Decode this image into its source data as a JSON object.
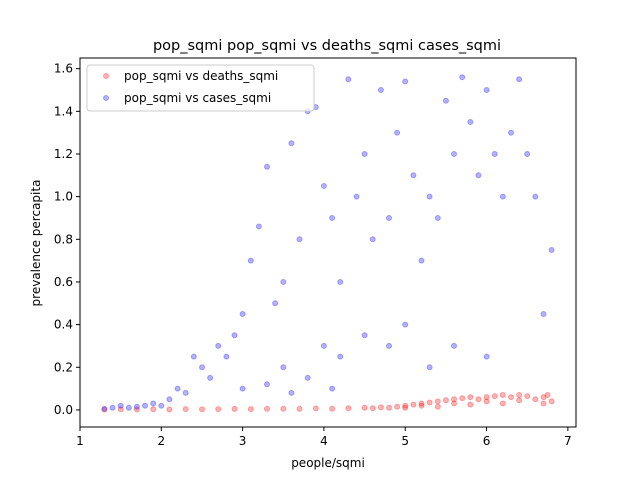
{
  "chart_data": {
    "type": "scatter",
    "title": "pop_sqmi pop_sqmi vs deaths_sqmi cases_sqmi",
    "xlabel": "people/sqmi",
    "ylabel": "prevalence percapita",
    "xlim": [
      1.0,
      7.1
    ],
    "ylim": [
      -0.08,
      1.65
    ],
    "xticks": [
      "1",
      "2",
      "3",
      "4",
      "5",
      "6",
      "7"
    ],
    "yticks": [
      "0.0",
      "0.2",
      "0.4",
      "0.6",
      "0.8",
      "1.0",
      "1.2",
      "1.4",
      "1.6"
    ],
    "legend_position": "top-left",
    "series": [
      {
        "name": "pop_sqmi vs deaths_sqmi",
        "color": "#ff0000",
        "points": [
          [
            1.3,
            0.002
          ],
          [
            1.5,
            0.003
          ],
          [
            1.7,
            0.002
          ],
          [
            1.9,
            0.003
          ],
          [
            2.1,
            0.002
          ],
          [
            2.3,
            0.004
          ],
          [
            2.5,
            0.003
          ],
          [
            2.7,
            0.004
          ],
          [
            2.9,
            0.005
          ],
          [
            3.1,
            0.004
          ],
          [
            3.3,
            0.005
          ],
          [
            3.5,
            0.006
          ],
          [
            3.7,
            0.005
          ],
          [
            3.9,
            0.007
          ],
          [
            4.1,
            0.006
          ],
          [
            4.3,
            0.008
          ],
          [
            4.5,
            0.01
          ],
          [
            4.7,
            0.012
          ],
          [
            4.9,
            0.015
          ],
          [
            5.0,
            0.02
          ],
          [
            5.1,
            0.025
          ],
          [
            5.2,
            0.03
          ],
          [
            5.3,
            0.035
          ],
          [
            5.4,
            0.04
          ],
          [
            5.5,
            0.045
          ],
          [
            5.6,
            0.05
          ],
          [
            5.7,
            0.055
          ],
          [
            5.8,
            0.06
          ],
          [
            5.9,
            0.05
          ],
          [
            6.0,
            0.06
          ],
          [
            6.1,
            0.065
          ],
          [
            6.2,
            0.07
          ],
          [
            6.3,
            0.06
          ],
          [
            6.4,
            0.07
          ],
          [
            6.5,
            0.065
          ],
          [
            6.6,
            0.05
          ],
          [
            6.7,
            0.06
          ],
          [
            6.75,
            0.07
          ],
          [
            6.8,
            0.04
          ],
          [
            6.7,
            0.03
          ],
          [
            5.0,
            0.01
          ],
          [
            5.2,
            0.02
          ],
          [
            5.4,
            0.015
          ],
          [
            5.6,
            0.03
          ],
          [
            5.8,
            0.025
          ],
          [
            6.0,
            0.04
          ],
          [
            6.2,
            0.03
          ],
          [
            6.4,
            0.045
          ],
          [
            4.8,
            0.01
          ],
          [
            4.6,
            0.008
          ]
        ]
      },
      {
        "name": "pop_sqmi vs cases_sqmi",
        "color": "#0000ff",
        "points": [
          [
            1.3,
            0.005
          ],
          [
            1.4,
            0.01
          ],
          [
            1.5,
            0.02
          ],
          [
            1.6,
            0.01
          ],
          [
            1.7,
            0.015
          ],
          [
            1.8,
            0.02
          ],
          [
            1.9,
            0.03
          ],
          [
            2.0,
            0.02
          ],
          [
            2.1,
            0.05
          ],
          [
            2.2,
            0.1
          ],
          [
            2.3,
            0.08
          ],
          [
            2.4,
            0.25
          ],
          [
            2.5,
            0.2
          ],
          [
            2.6,
            0.15
          ],
          [
            2.7,
            0.3
          ],
          [
            2.8,
            0.25
          ],
          [
            2.9,
            0.35
          ],
          [
            3.0,
            0.45
          ],
          [
            3.1,
            0.7
          ],
          [
            3.2,
            0.86
          ],
          [
            3.3,
            1.14
          ],
          [
            3.4,
            0.5
          ],
          [
            3.5,
            0.6
          ],
          [
            3.6,
            1.25
          ],
          [
            3.7,
            0.8
          ],
          [
            3.8,
            1.4
          ],
          [
            3.9,
            1.42
          ],
          [
            4.0,
            1.05
          ],
          [
            4.1,
            0.9
          ],
          [
            4.2,
            0.6
          ],
          [
            4.3,
            1.55
          ],
          [
            4.4,
            1.0
          ],
          [
            4.5,
            1.2
          ],
          [
            4.6,
            0.8
          ],
          [
            4.7,
            1.5
          ],
          [
            4.8,
            0.9
          ],
          [
            4.9,
            1.3
          ],
          [
            5.0,
            1.54
          ],
          [
            5.1,
            1.1
          ],
          [
            5.2,
            0.7
          ],
          [
            5.3,
            1.0
          ],
          [
            5.4,
            0.9
          ],
          [
            5.5,
            1.45
          ],
          [
            5.6,
            1.2
          ],
          [
            5.7,
            1.56
          ],
          [
            5.8,
            1.35
          ],
          [
            5.9,
            1.1
          ],
          [
            6.0,
            1.5
          ],
          [
            6.1,
            1.2
          ],
          [
            6.2,
            1.0
          ],
          [
            6.3,
            1.3
          ],
          [
            6.4,
            1.55
          ],
          [
            6.5,
            1.2
          ],
          [
            6.6,
            1.0
          ],
          [
            6.7,
            0.45
          ],
          [
            6.8,
            0.75
          ],
          [
            3.5,
            0.2
          ],
          [
            3.8,
            0.15
          ],
          [
            4.0,
            0.3
          ],
          [
            4.2,
            0.25
          ],
          [
            4.5,
            0.35
          ],
          [
            4.8,
            0.3
          ],
          [
            5.0,
            0.4
          ],
          [
            5.3,
            0.2
          ],
          [
            5.6,
            0.3
          ],
          [
            6.0,
            0.25
          ],
          [
            3.0,
            0.1
          ],
          [
            3.3,
            0.12
          ],
          [
            3.6,
            0.08
          ],
          [
            4.1,
            0.1
          ]
        ]
      }
    ]
  }
}
